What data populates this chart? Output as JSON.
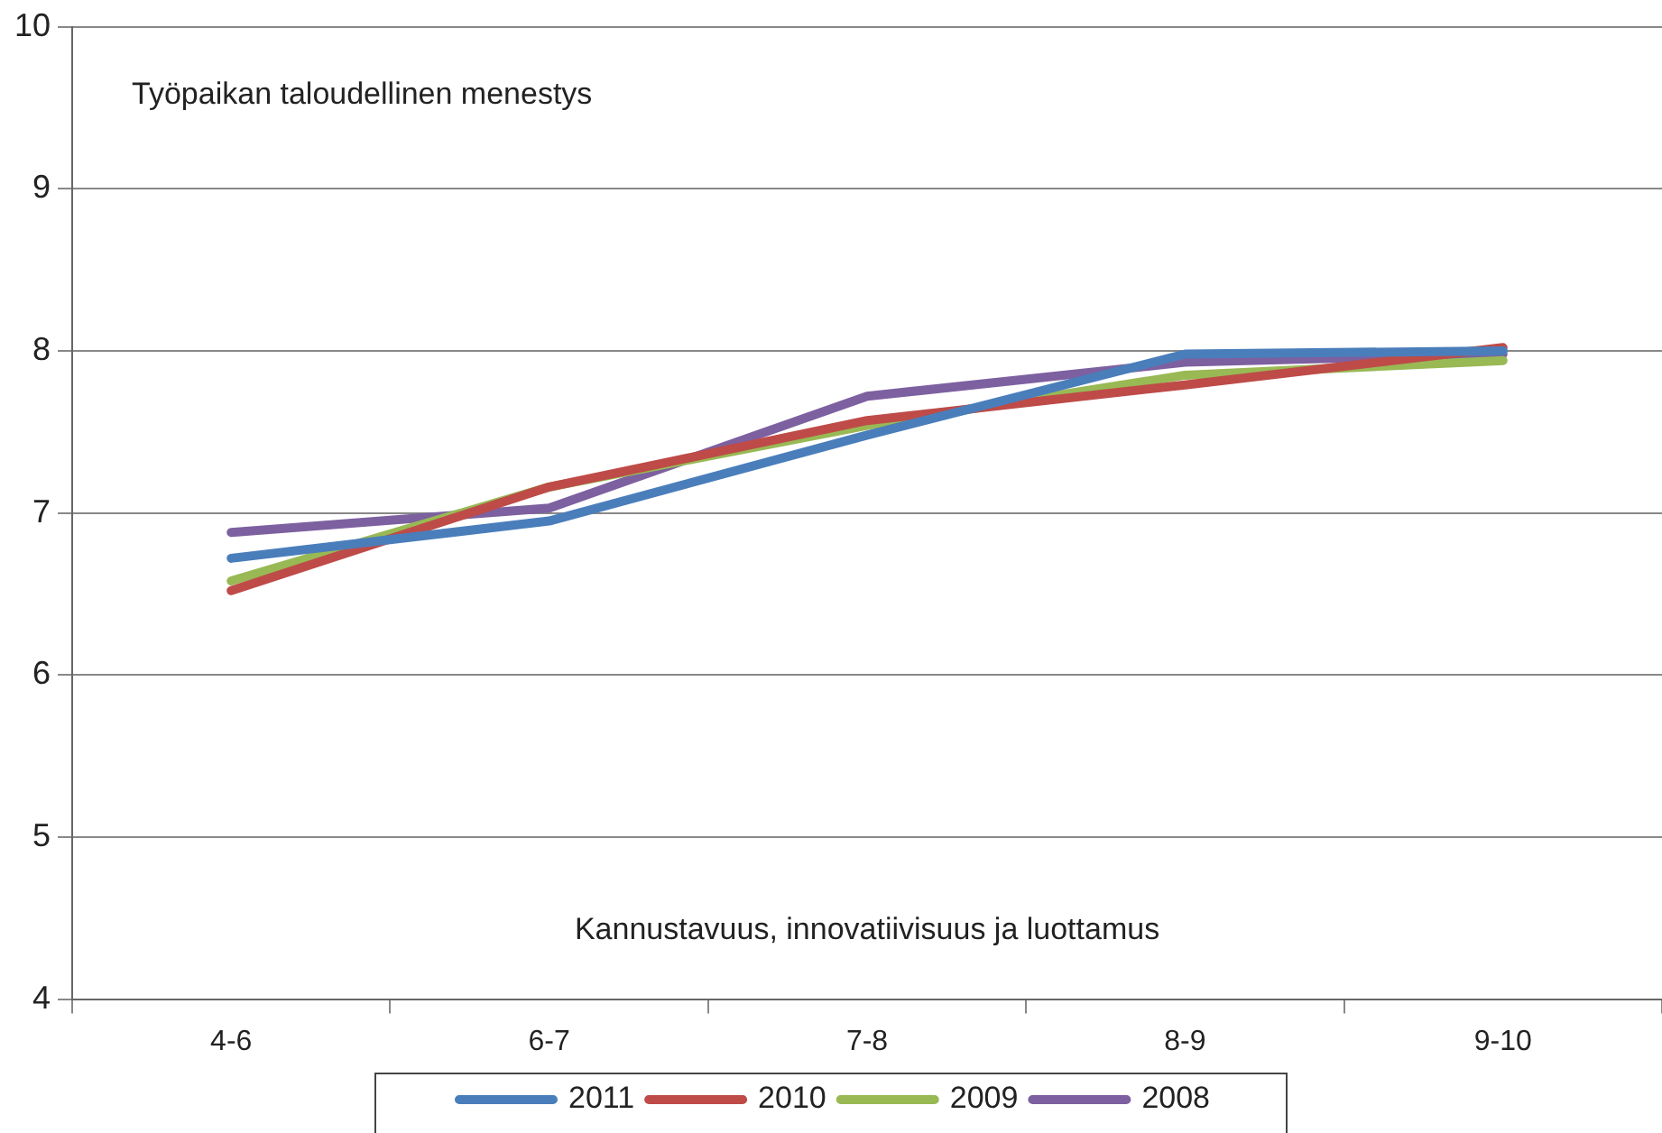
{
  "chart_data": {
    "type": "line",
    "categories": [
      "4-6",
      "6-7",
      "7-8",
      "8-9",
      "9-10"
    ],
    "series": [
      {
        "name": "2011",
        "color": "#4a7ebb",
        "values": [
          6.72,
          6.95,
          7.48,
          7.98,
          8.0
        ]
      },
      {
        "name": "2010",
        "color": "#be4b48",
        "values": [
          6.52,
          7.16,
          7.57,
          7.79,
          8.02
        ]
      },
      {
        "name": "2009",
        "color": "#98b954",
        "values": [
          6.58,
          7.16,
          7.54,
          7.85,
          7.94
        ]
      },
      {
        "name": "2008",
        "color": "#7d60a0",
        "values": [
          6.88,
          7.03,
          7.72,
          7.93,
          7.98
        ]
      }
    ],
    "ylim": [
      4,
      10
    ],
    "yticks": [
      4,
      5,
      6,
      7,
      8,
      9,
      10
    ],
    "grid": "y",
    "legend": "bottom",
    "marker": "none",
    "line_style": "solid",
    "annotations": [
      "Työpaikan taloudellinen menestys",
      "Kannustavuus, innovatiivisuus ja luottamus"
    ]
  }
}
